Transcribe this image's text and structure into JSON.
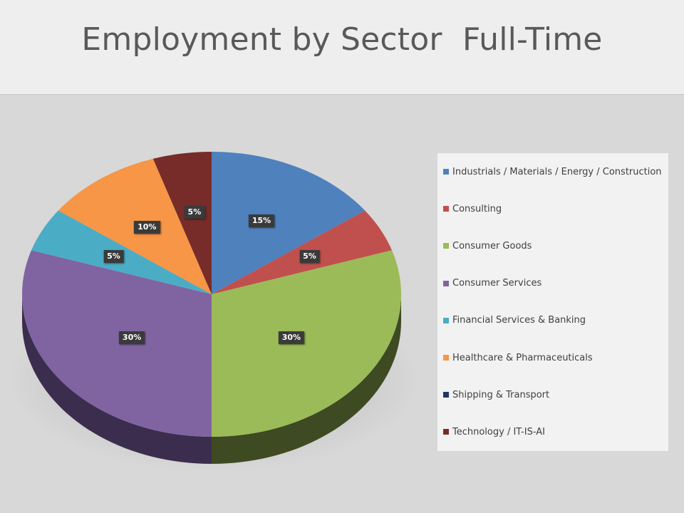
{
  "chart_data": {
    "type": "pie",
    "title": "Employment by Sector  Full-Time",
    "legend_position": "right",
    "slices": [
      {
        "name": "Industrials / Materials / Energy / Construction",
        "value": 15,
        "label": "15%",
        "color": "#4f81bd",
        "side": "#2f4f78"
      },
      {
        "name": "Consulting",
        "value": 5,
        "label": "5%",
        "color": "#c0504d",
        "side": "#7a2f2d"
      },
      {
        "name": "Consumer Goods",
        "value": 30,
        "label": "30%",
        "color": "#9bbb59",
        "side": "#3e4a22"
      },
      {
        "name": "Consumer Services",
        "value": 30,
        "label": "30%",
        "color": "#8064a2",
        "side": "#3b2d4d"
      },
      {
        "name": "Financial Services & Banking",
        "value": 5,
        "label": "5%",
        "color": "#4bacc6",
        "side": "#2a6678"
      },
      {
        "name": "Healthcare & Pharmaceuticals",
        "value": 10,
        "label": "10%",
        "color": "#f79646",
        "side": "#9a5a26"
      },
      {
        "name": "Shipping & Transport",
        "value": 0,
        "label": "",
        "color": "#1f3864",
        "side": "#152645"
      },
      {
        "name": "Technology / IT-IS-AI",
        "value": 5,
        "label": "5%",
        "color": "#772c2a",
        "side": "#4a1a19"
      }
    ]
  }
}
